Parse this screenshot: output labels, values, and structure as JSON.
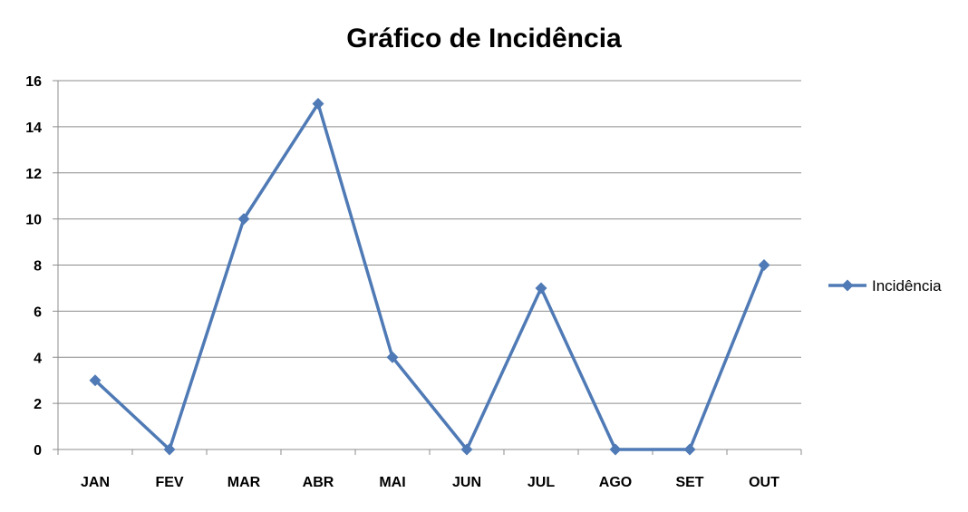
{
  "chart_data": {
    "type": "line",
    "title": "Gráfico de Incidência",
    "xlabel": "",
    "ylabel": "",
    "categories": [
      "JAN",
      "FEV",
      "MAR",
      "ABR",
      "MAI",
      "JUN",
      "JUL",
      "AGO",
      "SET",
      "OUT"
    ],
    "series": [
      {
        "name": "Incidência",
        "values": [
          3,
          0,
          10,
          15,
          4,
          0,
          7,
          0,
          0,
          8
        ],
        "color": "#4f7ab5",
        "marker": "diamond"
      }
    ],
    "ylim": [
      0,
      16
    ],
    "yticks": [
      "0",
      "2",
      "4",
      "6",
      "8",
      "10",
      "12",
      "14",
      "16"
    ],
    "grid": true,
    "legend_position": "right"
  }
}
